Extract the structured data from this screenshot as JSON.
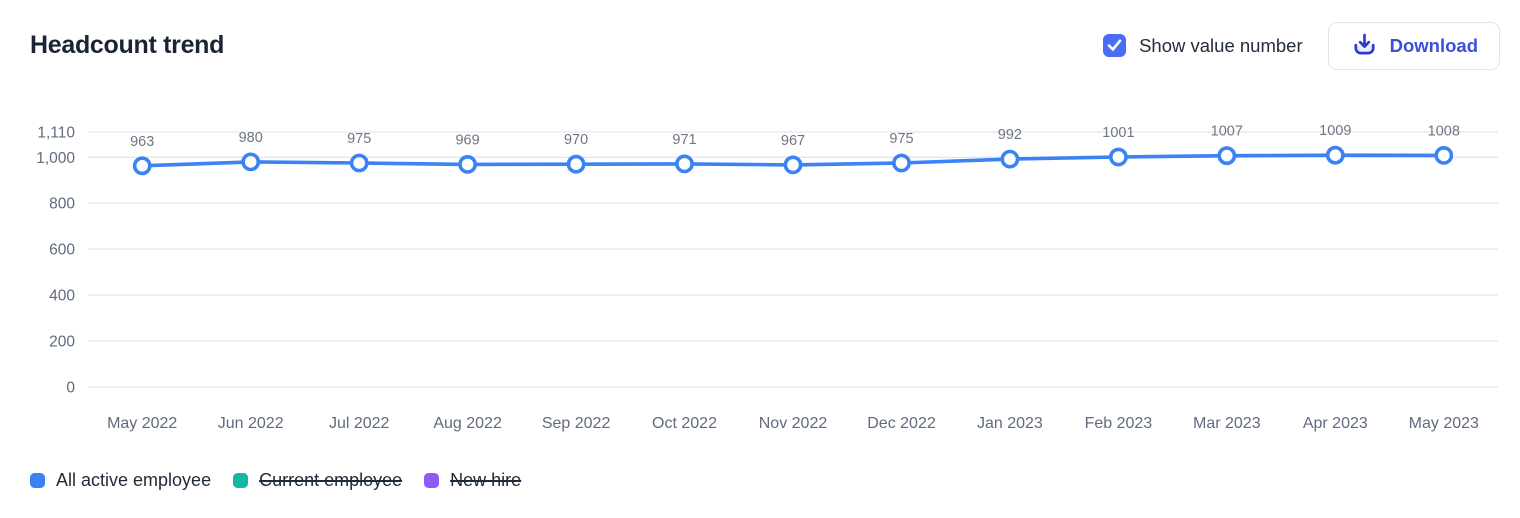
{
  "header": {
    "title": "Headcount trend",
    "checkbox_label": "Show value number",
    "checkbox_checked": true,
    "download_label": "Download"
  },
  "chart_data": {
    "type": "line",
    "title": "Headcount trend",
    "categories": [
      "May 2022",
      "Jun 2022",
      "Jul 2022",
      "Aug 2022",
      "Sep 2022",
      "Oct 2022",
      "Nov 2022",
      "Dec 2022",
      "Jan 2023",
      "Feb 2023",
      "Mar 2023",
      "Apr 2023",
      "May 2023"
    ],
    "series": [
      {
        "name": "All active employee",
        "color": "#3b82f6",
        "visible": true,
        "values": [
          963,
          980,
          975,
          969,
          970,
          971,
          967,
          975,
          992,
          1001,
          1007,
          1009,
          1008
        ]
      },
      {
        "name": "Current employee",
        "color": "#14b8a6",
        "visible": false
      },
      {
        "name": "New hire",
        "color": "#8b5cf6",
        "visible": false
      }
    ],
    "yticks": [
      1110,
      1000,
      800,
      600,
      400,
      200,
      0
    ],
    "ytick_labels": [
      "1,110",
      "1,000",
      "800",
      "600",
      "400",
      "200",
      "0"
    ],
    "ylim": [
      0,
      1110
    ],
    "grid": true,
    "show_value_labels": true,
    "legend_position": "bottom"
  },
  "legend": {
    "items": [
      {
        "label": "All active employee",
        "color": "#3b82f6",
        "active": true
      },
      {
        "label": "Current employee",
        "color": "#14b8a6",
        "active": false
      },
      {
        "label": "New hire",
        "color": "#8b5cf6",
        "active": false
      }
    ]
  },
  "colors": {
    "line": "#3b82f6",
    "marker_fill": "#ffffff",
    "grid": "#e4e7ee",
    "axis_text": "#5f6b7e",
    "value_label": "#6e7683",
    "title_text": "#1b2437",
    "checkbox": "#4a6cf7",
    "download_accent": "#3d4eda",
    "button_border": "#dfe3ee"
  }
}
